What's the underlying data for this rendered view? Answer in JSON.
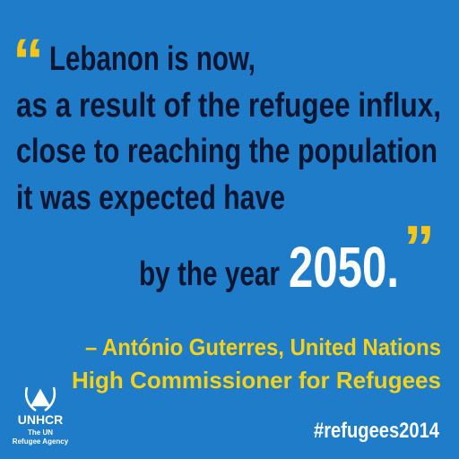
{
  "quote": {
    "open_mark": "“",
    "lines": [
      "Lebanon is now,",
      "as a result of the refugee influx,",
      "close to reaching the population",
      "it was expected have",
      "by the year"
    ],
    "highlight": "2050.",
    "close_mark": "”"
  },
  "attribution": [
    "– António Guterres, United Nations",
    "High Commissioner for Refugees"
  ],
  "logo": {
    "name": "UNHCR",
    "line1": "The UN",
    "line2": "Refugee Agency"
  },
  "hashtag": "#refugees2014"
}
